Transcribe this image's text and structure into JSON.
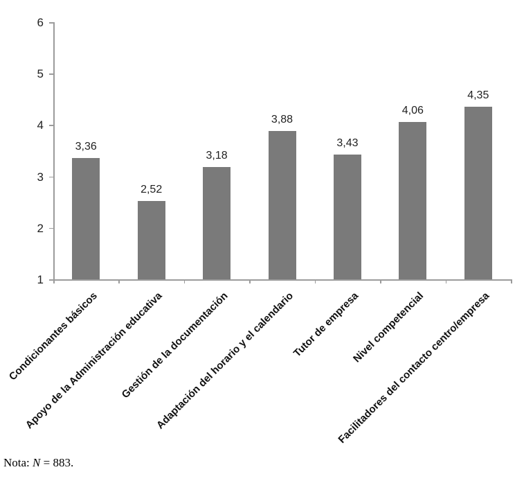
{
  "figure": {
    "note": {
      "prefix": "Nota: ",
      "n_symbol": "N",
      "suffix": " = 883."
    }
  },
  "chart_data": {
    "type": "bar",
    "title": "",
    "xlabel": "",
    "ylabel": "",
    "categories": [
      "Condicionantes básicos",
      "Apoyo de la Administración educativa",
      "Gestión de la documentación",
      "Adaptación del horario y el calendario",
      "Tutor de empresa",
      "Nivel competencial",
      "Facilitadores del contacto centro/empresa"
    ],
    "values": [
      3.36,
      2.52,
      3.18,
      3.88,
      3.43,
      4.06,
      4.35
    ],
    "value_labels": [
      "3,36",
      "2,52",
      "3,18",
      "3,88",
      "3,43",
      "4,06",
      "4,35"
    ],
    "ylim": [
      1,
      6
    ],
    "yticks": [
      1,
      2,
      3,
      4,
      5,
      6
    ],
    "ytick_labels": [
      "1",
      "2",
      "3",
      "4",
      "5",
      "6"
    ],
    "grid": false,
    "legend": false,
    "category_label_rotation_deg": -45,
    "colors": {
      "bar": "#7a7a7a",
      "axis": "#9b9b9b",
      "text": "#1f1f1f"
    }
  }
}
